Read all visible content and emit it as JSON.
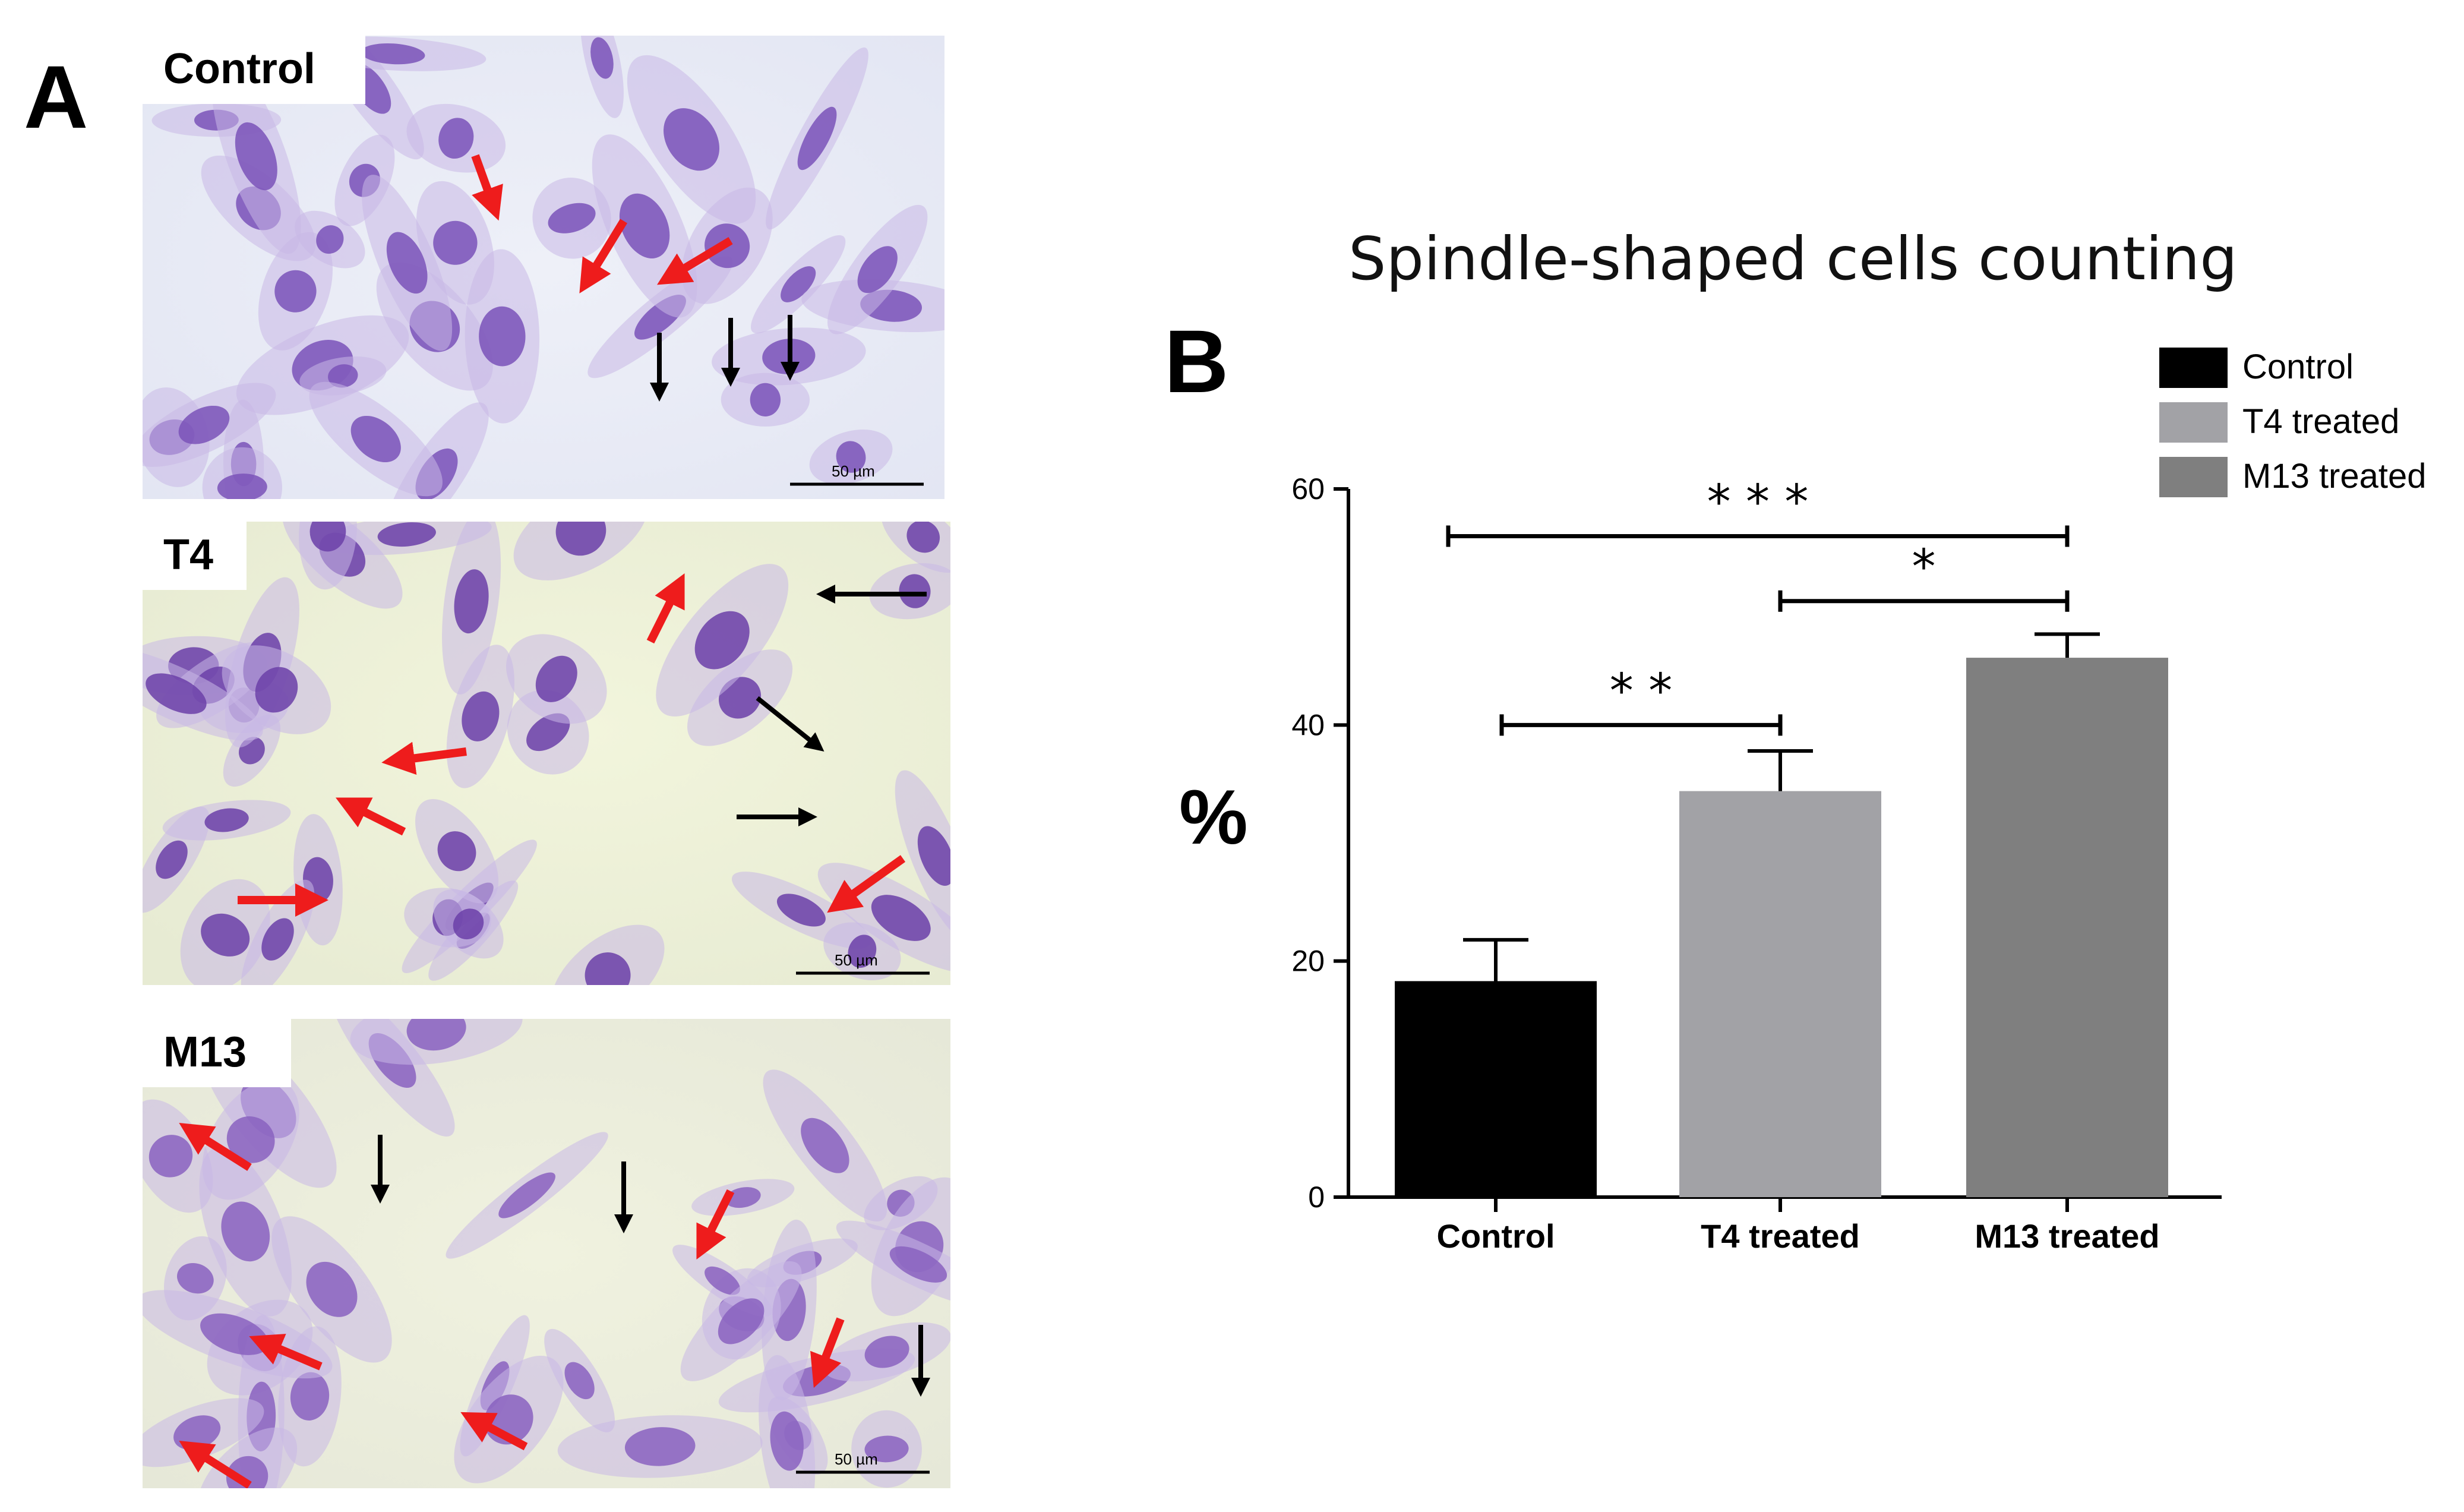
{
  "panel_a": {
    "letter": "A",
    "images": [
      {
        "label": "Control",
        "scale_bar": "50 µm"
      },
      {
        "label": "T4",
        "scale_bar": "50 µm"
      },
      {
        "label": "M13",
        "scale_bar": "50 µm"
      }
    ]
  },
  "panel_b": {
    "letter": "B"
  },
  "colors": {
    "control": "#000000",
    "t4": "#a2a2a6",
    "m13": "#7f7f7f",
    "red_arrow": "#ee1c1c",
    "cell": "#7a52b8"
  },
  "chart_data": {
    "type": "bar",
    "title": "Spindle-shaped  cells counting",
    "ylabel": "%",
    "xlabel": "",
    "categories": [
      "Control",
      "T4 treated",
      "M13 treated"
    ],
    "values": [
      18.3,
      34.4,
      45.7
    ],
    "errors": [
      3.5,
      3.4,
      2.0
    ],
    "ylim": [
      0,
      60
    ],
    "yticks": [
      0,
      20,
      40,
      60
    ],
    "legend": {
      "position": "top-right",
      "entries": [
        "Control",
        "T4 treated",
        "M13 treated"
      ]
    },
    "significance": [
      {
        "from": 0,
        "to": 2,
        "label": "***",
        "y": 56
      },
      {
        "from": 1,
        "to": 2,
        "label": "*",
        "y": 50.5
      },
      {
        "from": 0,
        "to": 1,
        "label": "**",
        "y": 40
      }
    ]
  }
}
